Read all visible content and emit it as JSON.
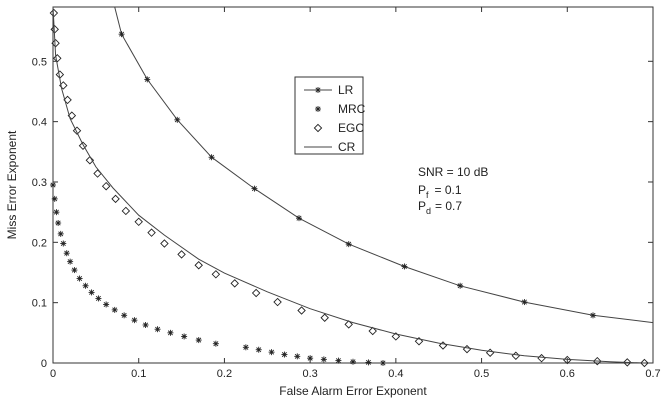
{
  "chart_data": {
    "type": "line",
    "xlabel": "False Alarm Error Exponent",
    "ylabel": "Miss Error Exponent",
    "xlim": [
      0,
      0.7
    ],
    "ylim": [
      0,
      0.59
    ],
    "xticks": [
      "0",
      "0.1",
      "0.2",
      "0.3",
      "0.4",
      "0.5",
      "0.6",
      "0.7"
    ],
    "yticks": [
      "0",
      "0.1",
      "0.2",
      "0.3",
      "0.4",
      "0.5"
    ],
    "grid": false,
    "legend_position": "top-center",
    "annotation": {
      "snr": "SNR = 10 dB",
      "pf_label": "P",
      "pf_sub": "f",
      "pf_value": "= 0.1",
      "pd_label": "P",
      "pd_sub": "d",
      "pd_value": "= 0.7"
    },
    "series": [
      {
        "name": "LR",
        "style": "line-star",
        "x": [
          0.072,
          0.08,
          0.11,
          0.145,
          0.185,
          0.235,
          0.287,
          0.345,
          0.41,
          0.475,
          0.55,
          0.63,
          0.7
        ],
        "y": [
          0.59,
          0.545,
          0.47,
          0.403,
          0.341,
          0.289,
          0.24,
          0.197,
          0.16,
          0.128,
          0.101,
          0.079,
          0.067
        ]
      },
      {
        "name": "MRC",
        "style": "star-markers",
        "x": [
          0.0,
          0.002,
          0.004,
          0.006,
          0.009,
          0.012,
          0.016,
          0.02,
          0.025,
          0.031,
          0.038,
          0.045,
          0.053,
          0.062,
          0.072,
          0.083,
          0.095,
          0.108,
          0.122,
          0.137,
          0.153,
          0.17,
          0.19,
          0.225,
          0.24,
          0.255,
          0.27,
          0.285,
          0.3,
          0.316,
          0.333,
          0.35,
          0.368,
          0.385
        ],
        "y": [
          0.295,
          0.272,
          0.25,
          0.232,
          0.214,
          0.198,
          0.182,
          0.168,
          0.154,
          0.14,
          0.128,
          0.117,
          0.107,
          0.097,
          0.088,
          0.079,
          0.071,
          0.063,
          0.056,
          0.05,
          0.044,
          0.038,
          0.032,
          0.026,
          0.022,
          0.018,
          0.014,
          0.011,
          0.008,
          0.006,
          0.004,
          0.002,
          0.001,
          0.0
        ]
      },
      {
        "name": "EGC",
        "style": "diamond-markers",
        "x": [
          0.001,
          0.002,
          0.003,
          0.005,
          0.008,
          0.012,
          0.017,
          0.022,
          0.028,
          0.035,
          0.043,
          0.052,
          0.062,
          0.073,
          0.085,
          0.1,
          0.115,
          0.13,
          0.15,
          0.17,
          0.19,
          0.212,
          0.237,
          0.262,
          0.29,
          0.317,
          0.345,
          0.373,
          0.4,
          0.427,
          0.455,
          0.483,
          0.51,
          0.54,
          0.57,
          0.6,
          0.635,
          0.67,
          0.69
        ],
        "y": [
          0.58,
          0.553,
          0.53,
          0.505,
          0.478,
          0.46,
          0.436,
          0.41,
          0.385,
          0.36,
          0.336,
          0.314,
          0.293,
          0.272,
          0.252,
          0.234,
          0.216,
          0.198,
          0.18,
          0.162,
          0.147,
          0.132,
          0.116,
          0.101,
          0.087,
          0.075,
          0.064,
          0.053,
          0.044,
          0.036,
          0.029,
          0.023,
          0.017,
          0.012,
          0.008,
          0.005,
          0.003,
          0.001,
          0.0
        ]
      },
      {
        "name": "CR",
        "style": "line",
        "x": [
          0.0,
          0.003,
          0.01,
          0.02,
          0.035,
          0.05,
          0.07,
          0.1,
          0.13,
          0.17,
          0.2,
          0.25,
          0.3,
          0.35,
          0.4,
          0.45,
          0.5,
          0.55,
          0.6,
          0.65,
          0.69
        ],
        "y": [
          0.59,
          0.51,
          0.455,
          0.405,
          0.362,
          0.325,
          0.29,
          0.245,
          0.212,
          0.172,
          0.149,
          0.118,
          0.09,
          0.067,
          0.048,
          0.033,
          0.021,
          0.012,
          0.006,
          0.002,
          0.0
        ]
      }
    ]
  }
}
